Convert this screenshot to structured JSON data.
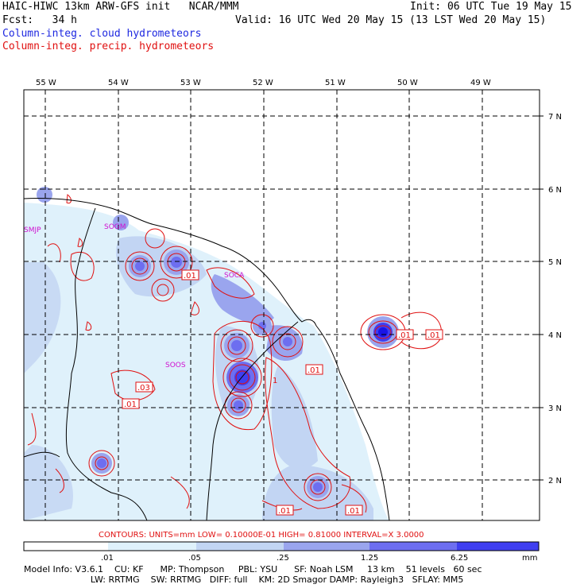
{
  "header": {
    "title": "HAIC-HIWC 13km ARW-GFS init   NCAR/MMM",
    "init": "Init: 06 UTC Tue 19 May 15",
    "fcst": "Fcst:   34 h",
    "valid": "Valid: 16 UTC Wed 20 May 15 (13 LST Wed 20 May 15)",
    "line_cloud": "Column-integ. cloud hydrometeors",
    "line_precip": "Column-integ. precip. hydrometeors"
  },
  "axes": {
    "lon_labels": [
      "55 W",
      "54 W",
      "53 W",
      "52 W",
      "51 W",
      "50 W",
      "49 W"
    ],
    "lat_labels": [
      "7 N",
      "6 N",
      "5 N",
      "4 N",
      "3 N",
      "2 N"
    ]
  },
  "stations": [
    "SMJP",
    "SOGM",
    "SOCA",
    "SOOS"
  ],
  "contour_labels": [
    ".01",
    ".01",
    ".01",
    ".01",
    ".03",
    ".01",
    ".01",
    ".01",
    "1"
  ],
  "contour_info": "CONTOURS:  UNITS=mm  LOW= 0.10000E-01  HIGH= 0.81000      INTERVAL=X  3.0000",
  "colorbar": {
    "ticks": [
      ".01",
      ".05",
      ".25",
      "1.25",
      "6.25"
    ],
    "unit": "mm",
    "colors": [
      "#ffffff",
      "#dff1fb",
      "#c2d5f3",
      "#9aa5ee",
      "#6d6ef0",
      "#3f3ef0",
      "#1a14e6"
    ]
  },
  "footer": {
    "line1": "Model Info: V3.6.1    CU: KF      MP: Thompson     PBL: YSU      SF: Noah LSM     13 km    51 levels   60 sec",
    "line2": "                        LW: RRTMG    SW: RRTMG   DIFF: full    KM: 2D Smagor DAMP: Rayleigh3   SFLAY: MM5"
  },
  "colors": {
    "grid": "#000000",
    "coast": "#000000",
    "precip": "#e01010",
    "cloud": "#1e28e0",
    "station": "#d010d0"
  }
}
